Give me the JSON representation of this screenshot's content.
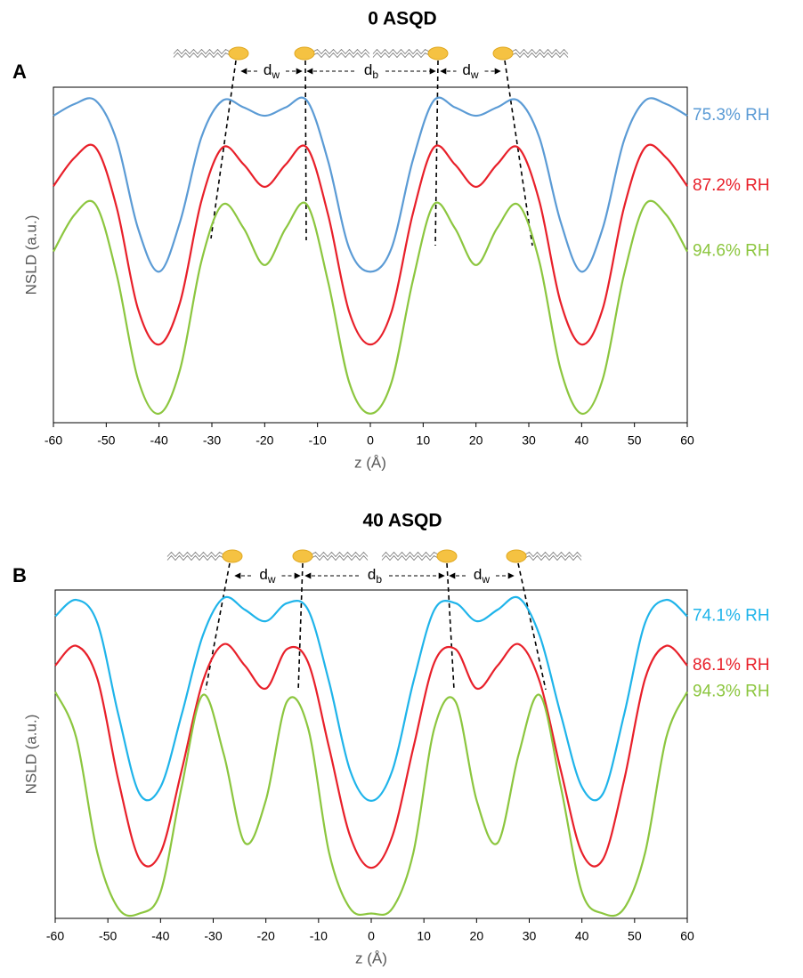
{
  "chart_data": [
    {
      "type": "line",
      "title": "0 ASQD",
      "panel": "A",
      "xlabel": "z (Å)",
      "ylabel": "NSLD (a.u.)",
      "x": [
        -60,
        -56,
        -52,
        -48,
        -44,
        -40,
        -36,
        -32,
        -28,
        -24,
        -20,
        -16,
        -12,
        -8,
        -4,
        0,
        4,
        8,
        12,
        16,
        20,
        24,
        28,
        32,
        36,
        40,
        44,
        48,
        52,
        56,
        60
      ],
      "xlim": [
        -60,
        60
      ],
      "xticks": [
        -60,
        -50,
        -40,
        -30,
        -20,
        -10,
        0,
        10,
        20,
        30,
        40,
        50,
        60
      ],
      "ylim": [
        0,
        100
      ],
      "dimension_labels": [
        {
          "base": "d",
          "sub": "w"
        },
        {
          "base": "d",
          "sub": "b"
        },
        {
          "base": "d",
          "sub": "w"
        }
      ],
      "series": [
        {
          "name": "75.3% RH",
          "color": "#5b9bd5",
          "values": [
            91.5,
            95,
            96,
            84,
            58,
            45,
            60,
            85,
            96,
            94,
            91.5,
            94,
            96,
            78,
            52,
            45,
            52,
            78,
            96,
            94,
            91.5,
            94,
            96,
            85,
            60,
            45,
            58,
            84,
            96,
            95,
            91.5
          ]
        },
        {
          "name": "87.2% RH",
          "color": "#e8202a",
          "values": [
            70.5,
            79,
            82,
            64,
            34,
            23.3,
            36,
            66,
            82,
            77,
            70.3,
            77,
            82,
            62,
            33,
            23.3,
            33,
            62,
            82,
            77,
            70.3,
            77,
            82,
            66,
            36,
            23.3,
            34,
            64,
            82,
            79,
            70.5
          ]
        },
        {
          "name": "94.6% RH",
          "color": "#8cc63f",
          "values": [
            51,
            62,
            65,
            44,
            13,
            2.7,
            16,
            48,
            65,
            58,
            47,
            58,
            65,
            42,
            12,
            2.7,
            12,
            42,
            65,
            58,
            47,
            58,
            65,
            48,
            16,
            2.7,
            13,
            44,
            65,
            62,
            51
          ]
        }
      ]
    },
    {
      "type": "line",
      "title": "40 ASQD",
      "panel": "B",
      "xlabel": "z (Å)",
      "ylabel": "NSLD (a.u.)",
      "x": [
        -60,
        -56,
        -52,
        -48,
        -44,
        -40,
        -36,
        -32,
        -28,
        -24,
        -20,
        -16,
        -12,
        -8,
        -4,
        0,
        4,
        8,
        12,
        16,
        20,
        24,
        28,
        32,
        36,
        40,
        44,
        48,
        52,
        56,
        60
      ],
      "xlim": [
        -60,
        60
      ],
      "xticks": [
        -60,
        -50,
        -40,
        -30,
        -20,
        -10,
        0,
        10,
        20,
        30,
        40,
        50,
        60
      ],
      "ylim": [
        0,
        100
      ],
      "dimension_labels": [
        {
          "base": "d",
          "sub": "w"
        },
        {
          "base": "d",
          "sub": "b"
        },
        {
          "base": "d",
          "sub": "w"
        }
      ],
      "series": [
        {
          "name": "74.1% RH",
          "color": "#1fb4ea",
          "values": [
            92,
            97,
            90,
            62,
            38,
            40,
            62,
            86,
            97.6,
            94,
            90.5,
            96,
            94,
            72,
            45,
            35.8,
            45,
            72,
            94,
            96,
            90.5,
            94,
            97.6,
            86,
            62,
            40,
            38,
            62,
            90,
            97,
            92
          ]
        },
        {
          "name": "86.1% RH",
          "color": "#e8202a",
          "values": [
            77,
            83,
            73,
            42,
            18,
            20,
            45,
            72,
            83.5,
            77,
            70,
            82,
            78,
            52,
            25,
            15.4,
            25,
            52,
            78,
            82,
            70,
            77,
            83.5,
            72,
            45,
            20,
            18,
            42,
            73,
            83,
            77
          ]
        },
        {
          "name": "94.3% RH",
          "color": "#8cc63f",
          "values": [
            69,
            55,
            20,
            3,
            1.5,
            8,
            40,
            68,
            50,
            23,
            36,
            66,
            58,
            20,
            3,
            1.5,
            3,
            20,
            58,
            66,
            36,
            23,
            50,
            68,
            40,
            8,
            1.5,
            3,
            20,
            55,
            69
          ]
        }
      ]
    }
  ]
}
